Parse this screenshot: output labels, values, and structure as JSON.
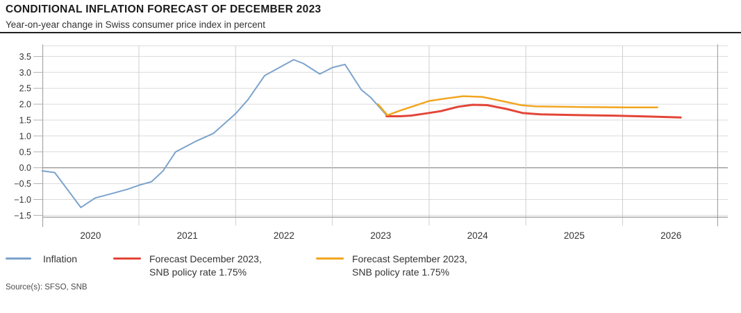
{
  "header": {
    "title": "CONDITIONAL INFLATION FORECAST OF DECEMBER 2023",
    "subtitle": "Year-on-year change in Swiss consumer price index in percent"
  },
  "source_note": "Source(s): SFSO, SNB",
  "colors": {
    "inflation_blue": "#7CA3CC",
    "forecast_dec_red": "#E34537",
    "forecast_sep_orange": "#F2A51F",
    "grid_light": "#DBDBDB",
    "grid_year": "#CFCFCF",
    "axis_gray": "#A6A6A6",
    "zero_line": "#999999",
    "text_dark": "#1A1A1A",
    "text_body": "#333333"
  },
  "legend": {
    "items": [
      {
        "id": "inflation",
        "color": "#7CA3CC",
        "line1": "Inflation",
        "line2": ""
      },
      {
        "id": "forecast-december-2023",
        "color": "#E34537",
        "line1": "Forecast December 2023,",
        "line2": "SNB policy rate 1.75%"
      },
      {
        "id": "forecast-september-2023",
        "color": "#F2A51F",
        "line1": "Forecast September 2023,",
        "line2": "SNB policy rate 1.75%"
      }
    ]
  },
  "chart_data": {
    "type": "line",
    "title": "CONDITIONAL INFLATION FORECAST OF DECEMBER 2023",
    "subtitle": "Year-on-year change in Swiss consumer price index in percent",
    "xlabel": "",
    "ylabel": "Year-on-year change in Swiss consumer price index in percent",
    "grid": true,
    "legend_position": "bottom",
    "x_range": [
      2020,
      2027
    ],
    "y_range": [
      -1.57,
      3.84
    ],
    "y_ticks": [
      -1.5,
      -1.0,
      -0.5,
      0.0,
      0.5,
      1.0,
      1.5,
      2.0,
      2.5,
      3.0,
      3.5
    ],
    "y_tick_labels": [
      "−1.5",
      "−1.0",
      "−0.5",
      "0.0",
      "0.5",
      "1.0",
      "1.5",
      "2.0",
      "2.5",
      "3.0",
      "3.5"
    ],
    "x_year_lines": [
      2021,
      2022,
      2023,
      2024,
      2025,
      2026
    ],
    "x_tick_labels": [
      "2020",
      "2021",
      "2022",
      "2023",
      "2024",
      "2025",
      "2026"
    ],
    "series": [
      {
        "name": "Inflation",
        "color": "#7CA3CC",
        "stroke_width": 2,
        "points": [
          [
            2020.0,
            -0.1
          ],
          [
            2020.13,
            -0.15
          ],
          [
            2020.4,
            -1.25
          ],
          [
            2020.55,
            -0.95
          ],
          [
            2020.7,
            -0.83
          ],
          [
            2020.88,
            -0.68
          ],
          [
            2021.0,
            -0.55
          ],
          [
            2021.13,
            -0.44
          ],
          [
            2021.25,
            -0.1
          ],
          [
            2021.38,
            0.5
          ],
          [
            2021.6,
            0.85
          ],
          [
            2021.77,
            1.08
          ],
          [
            2022.0,
            1.7
          ],
          [
            2022.13,
            2.15
          ],
          [
            2022.3,
            2.9
          ],
          [
            2022.42,
            3.1
          ],
          [
            2022.6,
            3.4
          ],
          [
            2022.7,
            3.28
          ],
          [
            2022.87,
            2.95
          ],
          [
            2023.0,
            3.15
          ],
          [
            2023.13,
            3.25
          ],
          [
            2023.3,
            2.45
          ],
          [
            2023.4,
            2.2
          ],
          [
            2023.56,
            1.65
          ]
        ]
      },
      {
        "name": "Forecast December 2023, SNB policy rate 1.75%",
        "color": "#E34537",
        "stroke_width": 3,
        "points": [
          [
            2023.56,
            1.62
          ],
          [
            2023.7,
            1.62
          ],
          [
            2023.81,
            1.64
          ],
          [
            2023.95,
            1.7
          ],
          [
            2024.12,
            1.78
          ],
          [
            2024.3,
            1.92
          ],
          [
            2024.45,
            1.98
          ],
          [
            2024.6,
            1.97
          ],
          [
            2024.8,
            1.85
          ],
          [
            2024.97,
            1.72
          ],
          [
            2025.15,
            1.68
          ],
          [
            2025.5,
            1.66
          ],
          [
            2025.9,
            1.64
          ],
          [
            2026.3,
            1.61
          ],
          [
            2026.6,
            1.58
          ]
        ]
      },
      {
        "name": "Forecast September 2023, SNB policy rate 1.75%",
        "color": "#F2A51F",
        "stroke_width": 2.5,
        "points": [
          [
            2023.47,
            2.0
          ],
          [
            2023.57,
            1.65
          ],
          [
            2023.7,
            1.8
          ],
          [
            2023.85,
            1.95
          ],
          [
            2024.0,
            2.1
          ],
          [
            2024.15,
            2.17
          ],
          [
            2024.35,
            2.25
          ],
          [
            2024.55,
            2.23
          ],
          [
            2024.75,
            2.1
          ],
          [
            2024.95,
            1.97
          ],
          [
            2025.1,
            1.93
          ],
          [
            2025.6,
            1.91
          ],
          [
            2026.0,
            1.9
          ],
          [
            2026.36,
            1.9
          ]
        ]
      }
    ]
  }
}
